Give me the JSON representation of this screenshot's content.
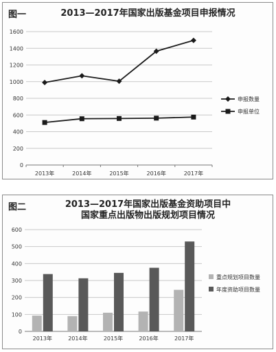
{
  "figures": [
    {
      "label": "图一",
      "title_line1": "2013—2017年国家出版基金项目申报情况",
      "title_line2": ""
    },
    {
      "label": "图二",
      "title_line1": "2013—2017年国家出版基金资助项目中",
      "title_line2": "国家重点出版物出版规划项目情况"
    }
  ],
  "chart_data": [
    {
      "type": "line",
      "categories": [
        "2013年",
        "2014年",
        "2015年",
        "2016年",
        "2017年"
      ],
      "ylim": [
        0,
        1600
      ],
      "yticks": [
        0,
        200,
        400,
        600,
        800,
        1000,
        1200,
        1400,
        1600
      ],
      "grid": true,
      "legend": "right",
      "series": [
        {
          "name": "申报数量",
          "values": [
            990,
            1070,
            1005,
            1365,
            1495
          ],
          "marker": "diamond",
          "color": "#1a1a1a"
        },
        {
          "name": "申报单位",
          "values": [
            510,
            555,
            558,
            562,
            575
          ],
          "marker": "square",
          "color": "#1a1a1a"
        }
      ]
    },
    {
      "type": "bar",
      "categories": [
        "2013年",
        "2014年",
        "2015年",
        "2016年",
        "2017年"
      ],
      "ylim": [
        0,
        600
      ],
      "yticks": [
        0,
        100,
        200,
        300,
        400,
        500,
        600
      ],
      "grid": true,
      "legend": "right",
      "series": [
        {
          "name": "重点规划项目数量",
          "values": [
            93,
            90,
            110,
            117,
            245
          ],
          "color": "#b3b3b3"
        },
        {
          "name": "年度资助项目数量",
          "values": [
            338,
            313,
            345,
            375,
            530
          ],
          "color": "#595959"
        }
      ]
    }
  ]
}
